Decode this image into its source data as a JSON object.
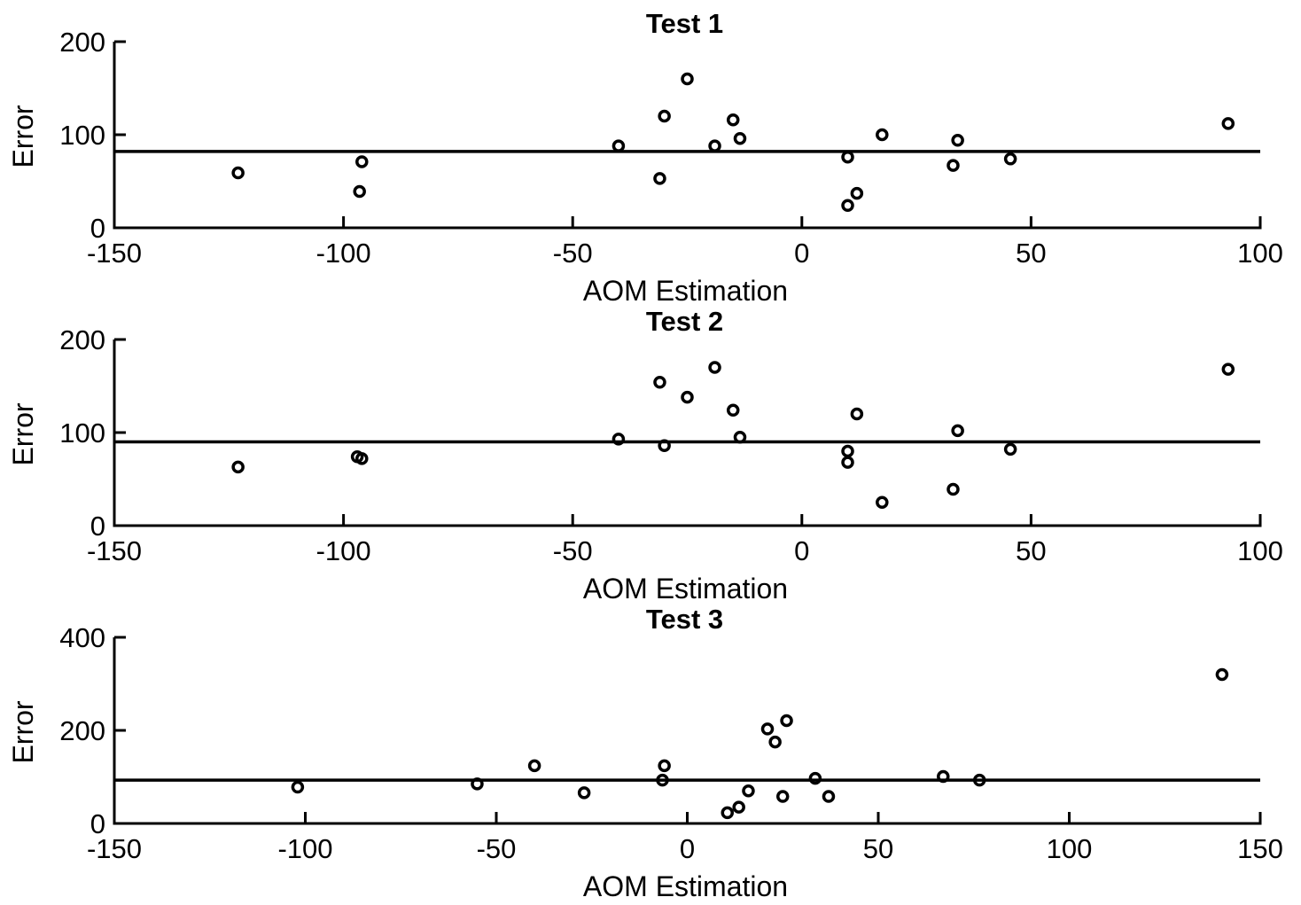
{
  "chart_data": [
    {
      "type": "scatter",
      "title": "Test 1",
      "xlabel": "AOM Estimation",
      "ylabel": "Error",
      "xlim": [
        -150,
        100
      ],
      "ylim": [
        0,
        200
      ],
      "xticks": [
        -150,
        -100,
        -50,
        0,
        50,
        100
      ],
      "yticks": [
        0,
        100,
        200
      ],
      "grid": false,
      "reference_line_y": 82,
      "points": [
        {
          "x": -123,
          "y": 59
        },
        {
          "x": -96.5,
          "y": 39
        },
        {
          "x": -96,
          "y": 71
        },
        {
          "x": -40,
          "y": 88
        },
        {
          "x": -31,
          "y": 53
        },
        {
          "x": -30,
          "y": 120
        },
        {
          "x": -25,
          "y": 160
        },
        {
          "x": -19,
          "y": 88
        },
        {
          "x": -15,
          "y": 116
        },
        {
          "x": -13.5,
          "y": 96
        },
        {
          "x": 10,
          "y": 76
        },
        {
          "x": 10,
          "y": 24
        },
        {
          "x": 12,
          "y": 37
        },
        {
          "x": 17.5,
          "y": 100
        },
        {
          "x": 33,
          "y": 67
        },
        {
          "x": 34,
          "y": 94
        },
        {
          "x": 45.5,
          "y": 74
        },
        {
          "x": 93,
          "y": 112
        }
      ]
    },
    {
      "type": "scatter",
      "title": "Test 2",
      "xlabel": "AOM Estimation",
      "ylabel": "Error",
      "xlim": [
        -150,
        100
      ],
      "ylim": [
        0,
        200
      ],
      "xticks": [
        -150,
        -100,
        -50,
        0,
        50,
        100
      ],
      "yticks": [
        0,
        100,
        200
      ],
      "grid": false,
      "reference_line_y": 90,
      "points": [
        {
          "x": -123,
          "y": 63
        },
        {
          "x": -97,
          "y": 74
        },
        {
          "x": -96,
          "y": 72
        },
        {
          "x": -40,
          "y": 93
        },
        {
          "x": -31,
          "y": 154
        },
        {
          "x": -30,
          "y": 86
        },
        {
          "x": -25,
          "y": 138
        },
        {
          "x": -19,
          "y": 170
        },
        {
          "x": -15,
          "y": 124
        },
        {
          "x": -13.5,
          "y": 95
        },
        {
          "x": 10,
          "y": 80
        },
        {
          "x": 10,
          "y": 68
        },
        {
          "x": 12,
          "y": 120
        },
        {
          "x": 17.5,
          "y": 25
        },
        {
          "x": 33,
          "y": 39
        },
        {
          "x": 34,
          "y": 102
        },
        {
          "x": 45.5,
          "y": 82
        },
        {
          "x": 93,
          "y": 168
        }
      ]
    },
    {
      "type": "scatter",
      "title": "Test 3",
      "xlabel": "AOM Estimation",
      "ylabel": "Error",
      "xlim": [
        -150,
        150
      ],
      "ylim": [
        0,
        400
      ],
      "xticks": [
        -150,
        -100,
        -50,
        0,
        50,
        100,
        150
      ],
      "yticks": [
        0,
        200,
        400
      ],
      "grid": false,
      "reference_line_y": 93,
      "points": [
        {
          "x": -102,
          "y": 78
        },
        {
          "x": -55,
          "y": 85
        },
        {
          "x": -40,
          "y": 124
        },
        {
          "x": -27,
          "y": 66
        },
        {
          "x": -6,
          "y": 124
        },
        {
          "x": -6.5,
          "y": 93
        },
        {
          "x": 10.5,
          "y": 23
        },
        {
          "x": 13.5,
          "y": 35
        },
        {
          "x": 16,
          "y": 70
        },
        {
          "x": 21,
          "y": 203
        },
        {
          "x": 23,
          "y": 175
        },
        {
          "x": 25,
          "y": 58
        },
        {
          "x": 26,
          "y": 221
        },
        {
          "x": 33.5,
          "y": 97
        },
        {
          "x": 37,
          "y": 58
        },
        {
          "x": 67,
          "y": 101
        },
        {
          "x": 76.5,
          "y": 93
        },
        {
          "x": 140,
          "y": 320
        }
      ]
    }
  ]
}
